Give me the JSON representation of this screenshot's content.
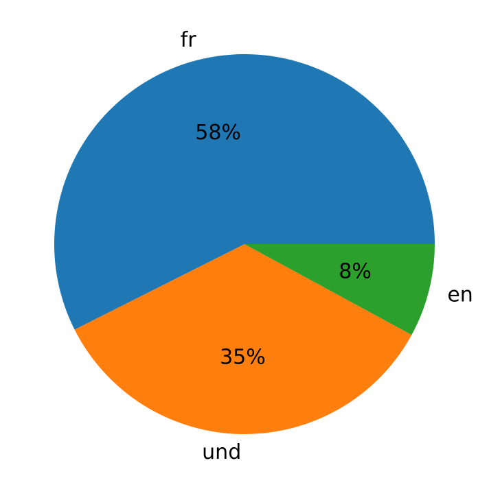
{
  "chart_data": {
    "type": "pie",
    "labels": [
      "fr",
      "und",
      "en"
    ],
    "values": [
      58,
      35,
      8
    ],
    "value_labels": [
      "58%",
      "35%",
      "8%"
    ],
    "colors": [
      "#1f77b4",
      "#ff7f0e",
      "#2ca02c"
    ],
    "start_angle": 0,
    "counterclockwise": true
  }
}
